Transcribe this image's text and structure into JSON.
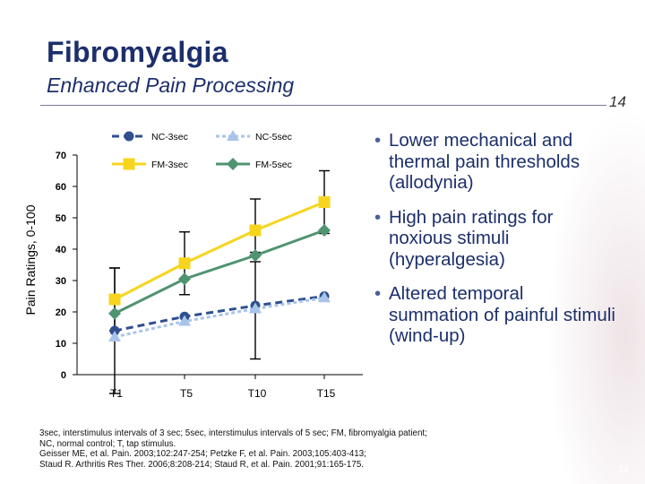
{
  "slide": {
    "title": "Fibromyalgia",
    "subtitle": "Enhanced Pain Processing",
    "page_number": "14",
    "watermark": "14"
  },
  "bullets": [
    "Lower mechanical and thermal pain thresholds (allodynia)",
    "High pain ratings for noxious stimuli (hyperalgesia)",
    "Altered temporal summation of painful stimuli (wind-up)"
  ],
  "footnote": {
    "line1": "3sec, interstimulus intervals of 3 sec; 5sec, interstimulus intervals of 5 sec; FM, fibromyalgia patient;",
    "line2": "NC, normal control; T, tap stimulus.",
    "line3": "Geisser ME, et al. Pain. 2003;102:247-254; Petzke F, et al. Pain. 2003;105:403-413;",
    "line4": "Staud R. Arthritis Res Ther. 2006;8:208-214; Staud R, et al. Pain. 2001;91:165-175."
  },
  "chart_data": {
    "type": "line",
    "title": "",
    "xlabel": "",
    "ylabel": "Pain Ratings, 0-100",
    "ylim": [
      0,
      70
    ],
    "yticks": [
      0,
      10,
      20,
      30,
      40,
      50,
      60,
      70
    ],
    "categories": [
      "T1",
      "T5",
      "T10",
      "T15"
    ],
    "legend_placement": "top",
    "grid": false,
    "series": [
      {
        "name": "NC-3sec",
        "color": "#2f4f8f",
        "dash": "8,5",
        "marker": "circle",
        "values": [
          14,
          18.5,
          22,
          25
        ],
        "err": [
          20,
          null,
          17,
          null
        ]
      },
      {
        "name": "NC-5sec",
        "color": "#a9c4ea",
        "dash": "4,3",
        "marker": "triangle",
        "values": [
          12,
          17,
          21,
          24.5
        ],
        "err": [
          null,
          null,
          null,
          null
        ]
      },
      {
        "name": "FM-3sec",
        "color": "#f7d51f",
        "dash": "",
        "marker": "square",
        "values": [
          24,
          35.5,
          46,
          55
        ],
        "err": [
          10,
          10,
          10,
          10
        ]
      },
      {
        "name": "FM-5sec",
        "color": "#4f9470",
        "dash": "",
        "marker": "diamond",
        "values": [
          19.5,
          30.5,
          38,
          46
        ],
        "err": [
          null,
          null,
          null,
          null
        ]
      }
    ]
  }
}
